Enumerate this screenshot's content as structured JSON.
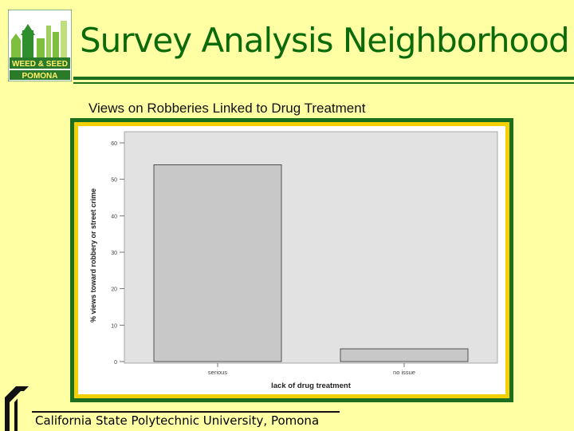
{
  "slide": {
    "title": "Survey Analysis Neighborhood",
    "subtitle": "Views on Robberies Linked to Drug Treatment",
    "footer": "California State Polytechnic University, Pomona",
    "logo_text_top": "WEED & SEED",
    "logo_text_bottom": "POMONA"
  },
  "colors": {
    "title": "#0b6b0b",
    "background": "#ffffa3",
    "frame_outer": "#1d6e1d",
    "frame_inner": "#f4d000",
    "plot_bg": "#e2e2e2",
    "bar": "#c8c8c8"
  },
  "chart_data": {
    "type": "bar",
    "title": "",
    "xlabel": "lack of drug treatment",
    "ylabel": "% views toward robbery or street crime",
    "categories": [
      "serious",
      "no issue"
    ],
    "values": [
      54,
      3.5
    ],
    "ylim": [
      0,
      60
    ],
    "yticks": [
      0,
      10,
      20,
      30,
      40,
      50,
      60
    ],
    "grid": false,
    "legend": "none"
  }
}
